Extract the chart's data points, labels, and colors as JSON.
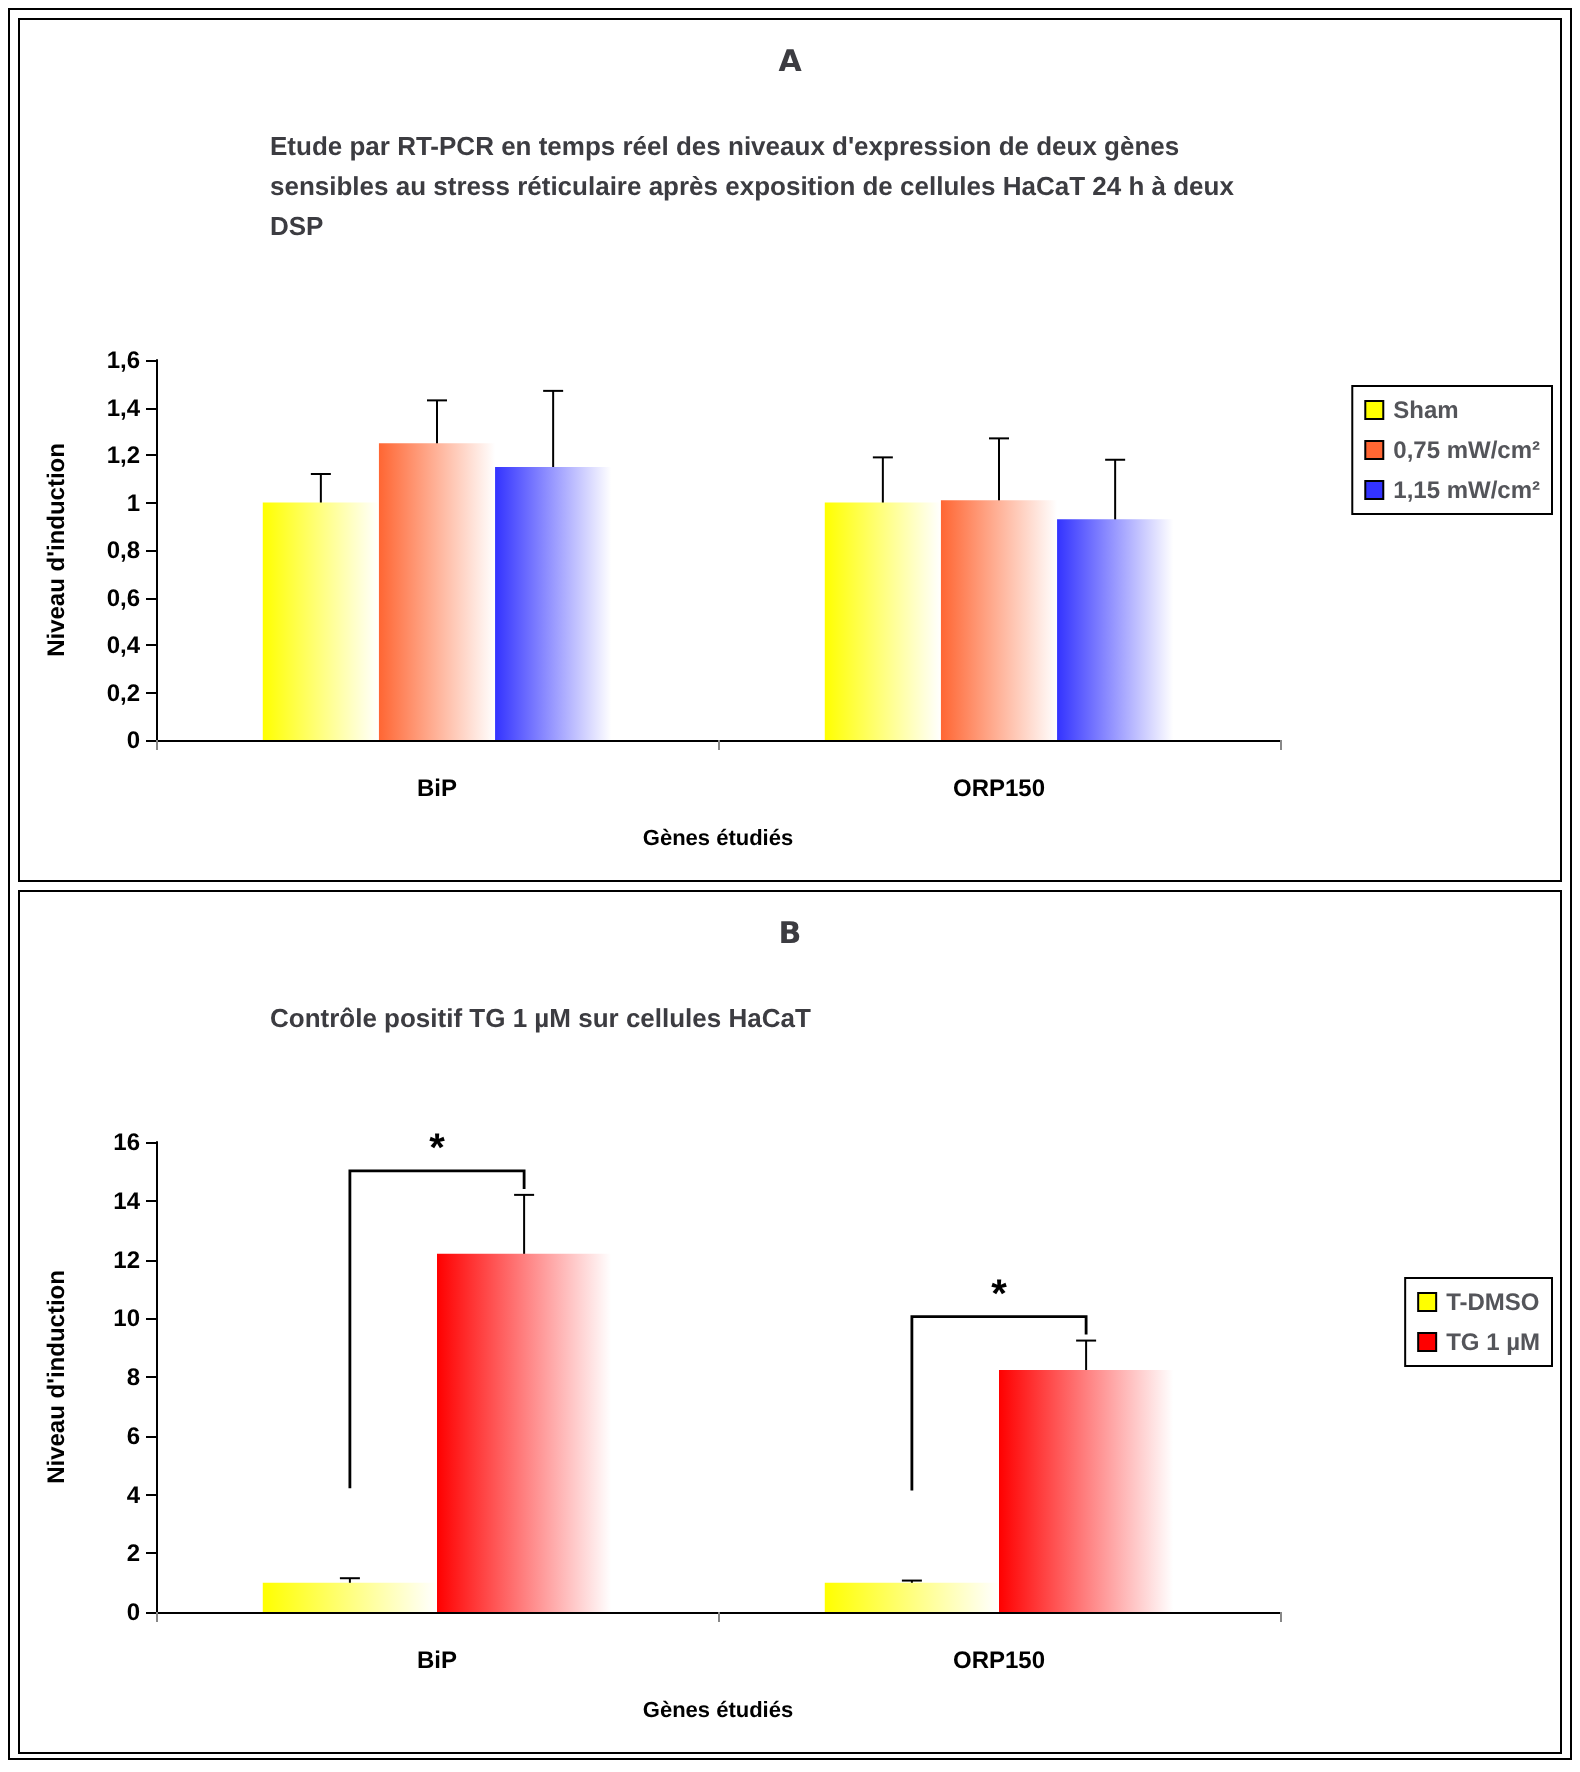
{
  "chart_data": [
    {
      "type": "bar",
      "title": "A",
      "subtitle": "Etude par RT-PCR en temps réel des niveaux d'expression de deux gènes sensibles au stress réticulaire après exposition de cellules HaCaT 24 h à deux DSP",
      "xlabel": "Gènes étudiés",
      "ylabel": "Niveau d'induction",
      "categories": [
        "BiP",
        "ORP150"
      ],
      "series": [
        {
          "name": "Sham",
          "color": "#ffff00",
          "values": [
            1.0,
            1.0
          ],
          "errors": [
            0.12,
            0.19
          ]
        },
        {
          "name": "0,75 mW/cm²",
          "color": "#ff6633",
          "values": [
            1.25,
            1.01
          ],
          "errors": [
            0.18,
            0.26
          ]
        },
        {
          "name": "1,15 mW/cm²",
          "color": "#3333ff",
          "values": [
            1.15,
            0.93
          ],
          "errors": [
            0.32,
            0.25
          ]
        }
      ],
      "ylim": [
        0,
        1.6
      ],
      "yticks": [
        0,
        {
          "value": 0.2,
          "label": "0,2"
        },
        {
          "value": 0.4,
          "label": "0,4"
        },
        {
          "value": 0.6,
          "label": "0,6"
        },
        {
          "value": 0.8,
          "label": "0,8"
        },
        1,
        {
          "value": 1.2,
          "label": "1,2"
        },
        {
          "value": 1.4,
          "label": "1,4"
        },
        {
          "value": 1.6,
          "label": "1,6"
        }
      ],
      "grid": false,
      "legend": "right"
    },
    {
      "type": "bar",
      "title": "B",
      "subtitle": "Contrôle positif TG 1 µM sur cellules HaCaT",
      "xlabel": "Gènes étudiés",
      "ylabel": "Niveau d'induction",
      "categories": [
        "BiP",
        "ORP150"
      ],
      "series": [
        {
          "name": "T-DMSO",
          "color": "#ffff00",
          "values": [
            1.0,
            1.0
          ],
          "errors": [
            0.15,
            0.07
          ]
        },
        {
          "name": "TG 1 µM",
          "color": "#ff0000",
          "values": [
            12.2,
            8.24
          ],
          "errors": [
            2.0,
            1.0
          ]
        }
      ],
      "ylim": [
        0,
        16
      ],
      "yticks": [
        0,
        2,
        4,
        6,
        8,
        10,
        12,
        14,
        16
      ],
      "grid": false,
      "legend": "right",
      "annotations": [
        "*",
        "*"
      ]
    }
  ]
}
